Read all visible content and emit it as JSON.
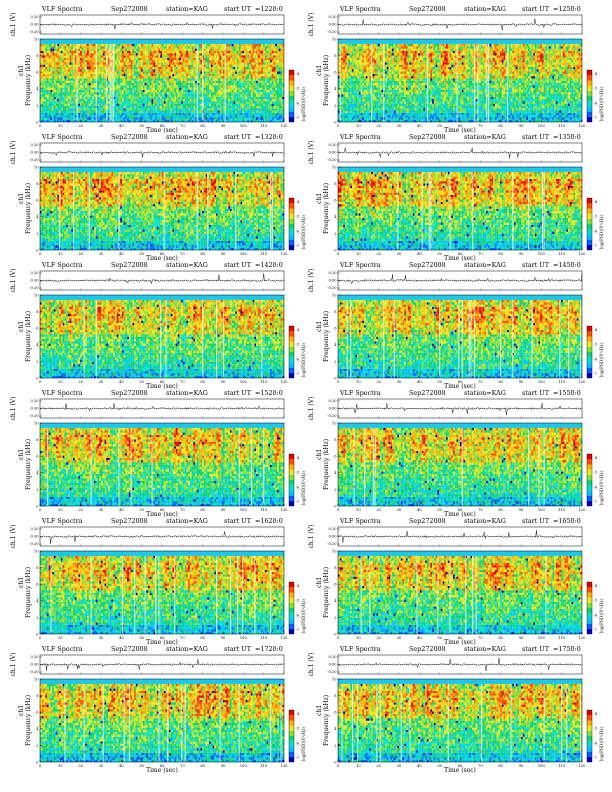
{
  "chart_data": [
    {
      "type": "heatmap",
      "title": "VLF Spectra",
      "date": "Sep272008",
      "station": "station=KAG",
      "ut_label": "start  UT",
      "ut": "=1220:0",
      "xlabel": "Time  (sec)",
      "ylabel": "Frequency  (kHz)",
      "channel": "ch1",
      "top_ylabel": "ch.1 (V)",
      "colorbar_label": "log(PSD)(V²/Hz)",
      "xlim": [
        0,
        120
      ],
      "ylim": [
        0,
        10
      ],
      "xticks": [
        "0",
        "10",
        "20",
        "30",
        "40",
        "50",
        "60",
        "70",
        "80",
        "90",
        "100",
        "110",
        "120"
      ],
      "yticks": [
        "0",
        "2",
        "4",
        "6",
        "8",
        "10"
      ],
      "top_yticks": [
        "0.20",
        "0.00",
        "-0.20"
      ],
      "colorbar_ticks": [
        "-4",
        "-5",
        "-6",
        "-7"
      ],
      "seed": 11
    },
    {
      "type": "heatmap",
      "title": "VLF Spectra",
      "date": "Sep272008",
      "station": "station=KAG",
      "ut_label": "start  UT",
      "ut": "=1250:0",
      "xlabel": "Time  (sec)",
      "ylabel": "Frequency  (kHz)",
      "channel": "ch1",
      "top_ylabel": "ch.1 (V)",
      "colorbar_label": "log(PSD)(V²/Hz)",
      "xlim": [
        0,
        120
      ],
      "ylim": [
        0,
        10
      ],
      "xticks": [
        "0",
        "10",
        "20",
        "30",
        "40",
        "50",
        "60",
        "70",
        "80",
        "90",
        "100",
        "110",
        "120"
      ],
      "yticks": [
        "0",
        "2",
        "4",
        "6",
        "8",
        "10"
      ],
      "top_yticks": [
        "0.20",
        "0.00",
        "-0.20"
      ],
      "colorbar_ticks": [
        "-4",
        "-5",
        "-6",
        "-7"
      ],
      "seed": 23
    },
    {
      "type": "heatmap",
      "title": "VLF Spectra",
      "date": "Sep272008",
      "station": "station=KAG",
      "ut_label": "start  UT",
      "ut": "=1320:0",
      "xlabel": "Time  (sec)",
      "ylabel": "Frequency  (kHz)",
      "channel": "ch1",
      "top_ylabel": "ch.1 (V)",
      "colorbar_label": "log(PSD)(V²/Hz)",
      "xlim": [
        0,
        120
      ],
      "ylim": [
        0,
        10
      ],
      "xticks": [
        "0",
        "10",
        "20",
        "30",
        "40",
        "50",
        "60",
        "70",
        "80",
        "90",
        "100",
        "110",
        "120"
      ],
      "yticks": [
        "0",
        "2",
        "4",
        "6",
        "8",
        "10"
      ],
      "top_yticks": [
        "0.20",
        "0.00",
        "-0.20"
      ],
      "colorbar_ticks": [
        "-4",
        "-5",
        "-6",
        "-7"
      ],
      "seed": 37
    },
    {
      "type": "heatmap",
      "title": "VLF Spectra",
      "date": "Sep272008",
      "station": "station=KAG",
      "ut_label": "start  UT",
      "ut": "=1350:0",
      "xlabel": "Time  (sec)",
      "ylabel": "Frequency  (kHz)",
      "channel": "ch1",
      "top_ylabel": "ch.1 (V)",
      "colorbar_label": "log(PSD)(V²/Hz)",
      "xlim": [
        0,
        120
      ],
      "ylim": [
        0,
        10
      ],
      "xticks": [
        "0",
        "10",
        "20",
        "30",
        "40",
        "50",
        "60",
        "70",
        "80",
        "90",
        "100",
        "110",
        "120"
      ],
      "yticks": [
        "0",
        "2",
        "4",
        "6",
        "8",
        "10"
      ],
      "top_yticks": [
        "0.20",
        "0.00",
        "-0.20"
      ],
      "colorbar_ticks": [
        "-4",
        "-5",
        "-6",
        "-7"
      ],
      "seed": 41
    },
    {
      "type": "heatmap",
      "title": "VLF Spectra",
      "date": "Sep272008",
      "station": "station=KAG",
      "ut_label": "start  UT",
      "ut": "=1420:0",
      "xlabel": "Time  (sec)",
      "ylabel": "Frequency  (kHz)",
      "channel": "ch1",
      "top_ylabel": "ch.1 (V)",
      "colorbar_label": "log(PSD)(V²/Hz)",
      "xlim": [
        0,
        120
      ],
      "ylim": [
        0,
        10
      ],
      "xticks": [
        "0",
        "10",
        "20",
        "30",
        "40",
        "50",
        "60",
        "70",
        "80",
        "90",
        "100",
        "110",
        "120"
      ],
      "yticks": [
        "0",
        "2",
        "4",
        "6",
        "8",
        "10"
      ],
      "top_yticks": [
        "0.20",
        "0.00",
        "-0.20"
      ],
      "colorbar_ticks": [
        "-4",
        "-5",
        "-6",
        "-7"
      ],
      "seed": 53
    },
    {
      "type": "heatmap",
      "title": "VLF Spectra",
      "date": "Sep272008",
      "station": "station=KAG",
      "ut_label": "start  UT",
      "ut": "=1450:0",
      "xlabel": "Time  (sec)",
      "ylabel": "Frequency  (kHz)",
      "channel": "ch1",
      "top_ylabel": "ch.1 (V)",
      "colorbar_label": "log(PSD)(V²/Hz)",
      "xlim": [
        0,
        120
      ],
      "ylim": [
        0,
        10
      ],
      "xticks": [
        "0",
        "10",
        "20",
        "30",
        "40",
        "50",
        "60",
        "70",
        "80",
        "90",
        "100",
        "110",
        "120"
      ],
      "yticks": [
        "0",
        "2",
        "4",
        "6",
        "8",
        "10"
      ],
      "top_yticks": [
        "0.20",
        "0.00",
        "-0.20"
      ],
      "colorbar_ticks": [
        "-4",
        "-5",
        "-6",
        "-7"
      ],
      "seed": 67
    },
    {
      "type": "heatmap",
      "title": "VLF Spectra",
      "date": "Sep272008",
      "station": "station=KAG",
      "ut_label": "start  UT",
      "ut": "=1520:0",
      "xlabel": "Time  (sec)",
      "ylabel": "Frequency  (kHz)",
      "channel": "ch1",
      "top_ylabel": "ch.1 (V)",
      "colorbar_label": "log(PSD)(V²/Hz)",
      "xlim": [
        0,
        120
      ],
      "ylim": [
        0,
        10
      ],
      "xticks": [
        "0",
        "10",
        "20",
        "30",
        "40",
        "50",
        "60",
        "70",
        "80",
        "90",
        "100",
        "110",
        "120"
      ],
      "yticks": [
        "0",
        "2",
        "4",
        "6",
        "8",
        "10"
      ],
      "top_yticks": [
        "0.20",
        "0.00",
        "-0.20"
      ],
      "colorbar_ticks": [
        "-4",
        "-5",
        "-6",
        "-7"
      ],
      "seed": 71
    },
    {
      "type": "heatmap",
      "title": "VLF Spectra",
      "date": "Sep272008",
      "station": "station=KAG",
      "ut_label": "start  UT",
      "ut": "=1550:0",
      "xlabel": "Time  (sec)",
      "ylabel": "Frequency  (kHz)",
      "channel": "ch1",
      "top_ylabel": "ch.1 (V)",
      "colorbar_label": "log(PSD)(V²/Hz)",
      "xlim": [
        0,
        120
      ],
      "ylim": [
        0,
        10
      ],
      "xticks": [
        "0",
        "10",
        "20",
        "30",
        "40",
        "50",
        "60",
        "70",
        "80",
        "90",
        "100",
        "110",
        "120"
      ],
      "yticks": [
        "0",
        "2",
        "4",
        "6",
        "8",
        "10"
      ],
      "top_yticks": [
        "0.20",
        "0.00",
        "-0.20"
      ],
      "colorbar_ticks": [
        "-4",
        "-5",
        "-6",
        "-7"
      ],
      "seed": 83
    },
    {
      "type": "heatmap",
      "title": "VLF Spectra",
      "date": "Sep272008",
      "station": "station=KAG",
      "ut_label": "start  UT",
      "ut": "=1620:0",
      "xlabel": "Time  (sec)",
      "ylabel": "Frequency  (kHz)",
      "channel": "ch1",
      "top_ylabel": "ch.1 (V)",
      "colorbar_label": "log(PSD)(V²/Hz)",
      "xlim": [
        0,
        120
      ],
      "ylim": [
        0,
        10
      ],
      "xticks": [
        "0",
        "10",
        "20",
        "30",
        "40",
        "50",
        "60",
        "70",
        "80",
        "90",
        "100",
        "110",
        "120"
      ],
      "yticks": [
        "0",
        "2",
        "4",
        "6",
        "8",
        "10"
      ],
      "top_yticks": [
        "0.20",
        "0.00",
        "-0.20"
      ],
      "colorbar_ticks": [
        "-4",
        "-5",
        "-6",
        "-7"
      ],
      "seed": 97
    },
    {
      "type": "heatmap",
      "title": "VLF Spectra",
      "date": "Sep272008",
      "station": "station=KAG",
      "ut_label": "start  UT",
      "ut": "=1650:0",
      "xlabel": "Time  (sec)",
      "ylabel": "Frequency  (kHz)",
      "channel": "ch1",
      "top_ylabel": "ch.1 (V)",
      "colorbar_label": "log(PSD)(V²/Hz)",
      "xlim": [
        0,
        120
      ],
      "ylim": [
        0,
        10
      ],
      "xticks": [
        "0",
        "10",
        "20",
        "30",
        "40",
        "50",
        "60",
        "70",
        "80",
        "90",
        "100",
        "110",
        "120"
      ],
      "yticks": [
        "0",
        "2",
        "4",
        "6",
        "8",
        "10"
      ],
      "top_yticks": [
        "0.20",
        "0.00",
        "-0.20"
      ],
      "colorbar_ticks": [
        "-4",
        "-5",
        "-6",
        "-7"
      ],
      "seed": 101
    },
    {
      "type": "heatmap",
      "title": "VLF Spectra",
      "date": "Sep272008",
      "station": "station=KAG",
      "ut_label": "start  UT",
      "ut": "=1720:0",
      "xlabel": "Time  (sec)",
      "ylabel": "Frequency  (kHz)",
      "channel": "ch1",
      "top_ylabel": "ch.1 (V)",
      "colorbar_label": "log(PSD)(V²/Hz)",
      "xlim": [
        0,
        120
      ],
      "ylim": [
        0,
        10
      ],
      "xticks": [
        "0",
        "10",
        "20",
        "30",
        "40",
        "50",
        "60",
        "70",
        "80",
        "90",
        "100",
        "110",
        "120"
      ],
      "yticks": [
        "0",
        "2",
        "4",
        "6",
        "8",
        "10"
      ],
      "top_yticks": [
        "0.20",
        "0.00",
        "-0.20"
      ],
      "colorbar_ticks": [
        "-4",
        "-5",
        "-6",
        "-7"
      ],
      "seed": 113
    },
    {
      "type": "heatmap",
      "title": "VLF Spectra",
      "date": "Sep272008",
      "station": "station=KAG",
      "ut_label": "start  UT",
      "ut": "=1750:0",
      "xlabel": "Time  (sec)",
      "ylabel": "Frequency  (kHz)",
      "channel": "ch1",
      "top_ylabel": "ch.1 (V)",
      "colorbar_label": "log(PSD)(V²/Hz)",
      "xlim": [
        0,
        120
      ],
      "ylim": [
        0,
        10
      ],
      "xticks": [
        "0",
        "10",
        "20",
        "30",
        "40",
        "50",
        "60",
        "70",
        "80",
        "90",
        "100",
        "110",
        "120"
      ],
      "yticks": [
        "0",
        "2",
        "4",
        "6",
        "8",
        "10"
      ],
      "top_yticks": [
        "0.20",
        "0.00",
        "-0.20"
      ],
      "colorbar_ticks": [
        "-4",
        "-5",
        "-6",
        "-7"
      ],
      "seed": 127
    }
  ],
  "colors": {
    "scale": [
      "#0000cc",
      "#0060ff",
      "#00c0ff",
      "#00e0d0",
      "#10d070",
      "#80e040",
      "#e8e820",
      "#ffb000",
      "#ff5000",
      "#e00000"
    ],
    "background_cyan": "#20c8e8",
    "trace": "#000000"
  }
}
